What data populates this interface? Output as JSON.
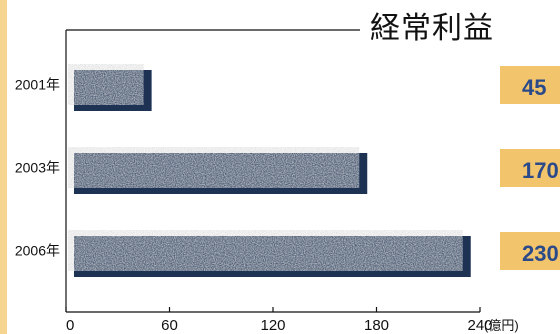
{
  "colors": {
    "bar_shadow": "#1e3354",
    "value_tab": "#f2c46c",
    "value_text": "#2b4a8a",
    "left_strip": "#f6d591"
  },
  "chart_data": {
    "type": "bar",
    "orientation": "horizontal",
    "title": "経常利益",
    "categories": [
      "2001年",
      "2003年",
      "2006年"
    ],
    "values": [
      45,
      170,
      230
    ],
    "value_labels": [
      "45",
      "170",
      "230"
    ],
    "xlabel": "",
    "unit": "(億円)",
    "xlim": [
      0,
      240
    ],
    "xticks": [
      "0",
      "60",
      "120",
      "180",
      "240"
    ],
    "grid": false,
    "legend": "none"
  }
}
